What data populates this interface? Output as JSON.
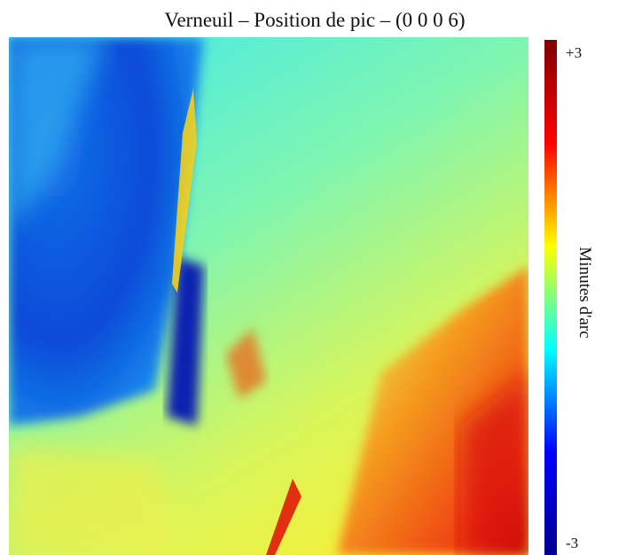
{
  "chart_data": {
    "type": "heatmap",
    "title": "Verneuil – Position de pic – (0 0 0 6)",
    "colorbar_label": "Minutes d'arc",
    "colormap": "jet",
    "clim": [
      -3,
      3
    ],
    "cticks": [
      {
        "value": 3,
        "label": "+3"
      },
      -3
    ]
  }
}
